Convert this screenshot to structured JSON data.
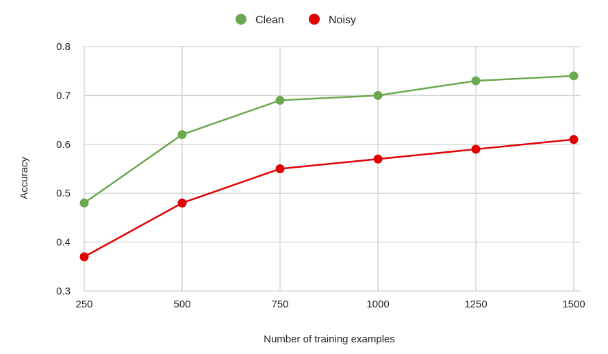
{
  "chart_data": {
    "type": "line",
    "x": [
      250,
      500,
      750,
      1000,
      1250,
      1500
    ],
    "series": [
      {
        "name": "Clean",
        "color": "#6aa84f",
        "values": [
          0.48,
          0.62,
          0.69,
          0.7,
          0.73,
          0.74
        ]
      },
      {
        "name": "Noisy",
        "color": "#e00000",
        "values": [
          0.37,
          0.48,
          0.55,
          0.57,
          0.59,
          0.61
        ]
      }
    ],
    "xlabel": "Number of training examples",
    "ylabel": "Accuracy",
    "ylim": [
      0.3,
      0.8
    ],
    "yticks": [
      "0.3",
      "0.4",
      "0.5",
      "0.6",
      "0.7",
      "0.8"
    ],
    "xticks": [
      "250",
      "500",
      "750",
      "1000",
      "1250",
      "1500"
    ],
    "grid": true,
    "legend_position": "top-center"
  }
}
